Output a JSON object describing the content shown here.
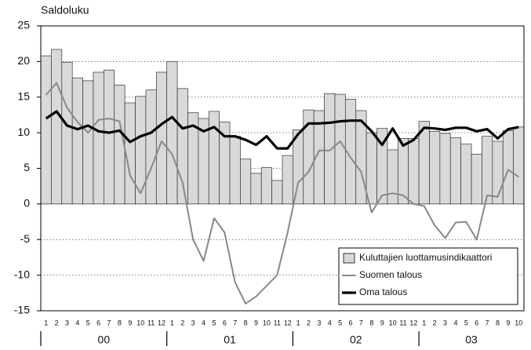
{
  "chart_data": {
    "type": "bar_line",
    "y_label": "Saldoluku",
    "categories": [
      "1",
      "2",
      "3",
      "4",
      "5",
      "6",
      "7",
      "8",
      "9",
      "10",
      "11",
      "12",
      "1",
      "2",
      "3",
      "4",
      "5",
      "6",
      "7",
      "8",
      "9",
      "10",
      "11",
      "12",
      "1",
      "2",
      "3",
      "4",
      "5",
      "6",
      "7",
      "8",
      "9",
      "10",
      "11",
      "12",
      "1",
      "2",
      "3",
      "4",
      "5",
      "6",
      "7",
      "8",
      "9",
      "10"
    ],
    "groups": [
      "00",
      "01",
      "02",
      "03"
    ],
    "ylim": [
      -15,
      25
    ],
    "yticks": [
      25,
      20,
      15,
      10,
      5,
      0,
      -5,
      -10,
      -15
    ],
    "grid": true,
    "legend": "lower right",
    "series": [
      {
        "name": "Kuluttajien luottamusindikaattori",
        "kind": "bar",
        "color": "#d9d9d9",
        "values": [
          20.8,
          21.7,
          19.9,
          17.7,
          17.3,
          18.5,
          18.8,
          16.7,
          14.2,
          15.1,
          16.0,
          18.5,
          20.0,
          16.2,
          12.8,
          12.0,
          13.0,
          11.5,
          9.5,
          6.3,
          4.3,
          5.1,
          3.3,
          6.8,
          10.4,
          13.2,
          13.1,
          15.5,
          15.4,
          14.7,
          13.1,
          10.0,
          10.6,
          7.6,
          9.2,
          9.2,
          11.6,
          10.2,
          9.9,
          9.3,
          8.4,
          7.0,
          9.5,
          8.8,
          10.3,
          10.8
        ]
      },
      {
        "name": "Suomen talous",
        "kind": "line",
        "color": "#888888",
        "values": [
          15.3,
          17.0,
          13.5,
          11.5,
          10.0,
          11.8,
          12.0,
          11.6,
          4.0,
          1.5,
          5.0,
          8.8,
          7.0,
          3.0,
          -5.0,
          -8.0,
          -2.0,
          -4.0,
          -11.0,
          -14.0,
          -13.0,
          -11.5,
          -10.0,
          -4.0,
          3.0,
          4.5,
          7.5,
          7.5,
          8.8,
          6.5,
          4.5,
          -1.2,
          1.2,
          1.5,
          1.2,
          0.0,
          -0.3,
          -3.0,
          -4.8,
          -2.6,
          -2.5,
          -5.0,
          1.2,
          1.0,
          4.8,
          3.8
        ]
      },
      {
        "name": "Oma talous",
        "kind": "line",
        "color": "#000000",
        "values": [
          12.0,
          13.0,
          11.0,
          10.5,
          11.0,
          10.2,
          10.0,
          10.3,
          8.7,
          9.5,
          10.0,
          11.2,
          12.2,
          10.6,
          11.0,
          10.2,
          10.8,
          9.5,
          9.5,
          9.0,
          8.3,
          9.5,
          7.8,
          7.8,
          9.8,
          11.3,
          11.3,
          11.4,
          11.6,
          11.7,
          11.7,
          10.2,
          8.3,
          10.6,
          8.2,
          9.0,
          10.7,
          10.6,
          10.4,
          10.7,
          10.7,
          10.2,
          10.5,
          9.2,
          10.5,
          10.8
        ]
      }
    ]
  }
}
